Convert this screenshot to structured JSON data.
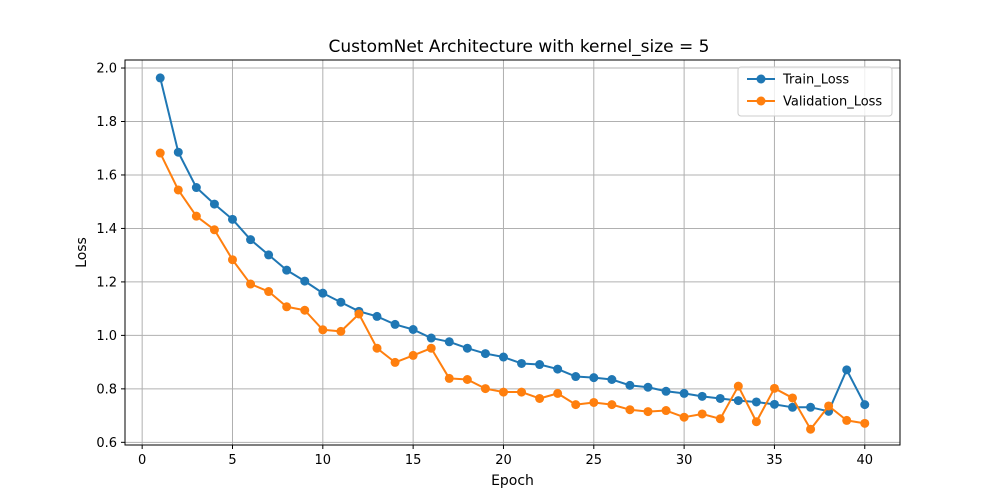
{
  "chart_data": {
    "type": "line",
    "title": "CustomNet Architecture with kernel_size = 5",
    "xlabel": "Epoch",
    "ylabel": "Loss",
    "xlim": [
      -0.95,
      41.95
    ],
    "ylim": [
      0.59,
      2.03
    ],
    "xticks": [
      0,
      5,
      10,
      15,
      20,
      25,
      30,
      35,
      40
    ],
    "xtick_labels": [
      "0",
      "5",
      "10",
      "15",
      "20",
      "25",
      "30",
      "35",
      "40"
    ],
    "yticks": [
      0.6,
      0.8,
      1.0,
      1.2,
      1.4,
      1.6,
      1.8,
      2.0
    ],
    "ytick_labels": [
      "0.6",
      "0.8",
      "1.0",
      "1.2",
      "1.4",
      "1.6",
      "1.8",
      "2.0"
    ],
    "grid": true,
    "legend_position": "top-right",
    "x": [
      1,
      2,
      3,
      4,
      5,
      6,
      7,
      8,
      9,
      10,
      11,
      12,
      13,
      14,
      15,
      16,
      17,
      18,
      19,
      20,
      21,
      22,
      23,
      24,
      25,
      26,
      27,
      28,
      29,
      30,
      31,
      32,
      33,
      34,
      35,
      36,
      37,
      38,
      39,
      40
    ],
    "series": [
      {
        "name": "Train_Loss",
        "color": "#1f77b4",
        "values": [
          1.963,
          1.685,
          1.553,
          1.491,
          1.434,
          1.358,
          1.301,
          1.244,
          1.203,
          1.158,
          1.124,
          1.09,
          1.071,
          1.041,
          1.022,
          0.99,
          0.976,
          0.952,
          0.932,
          0.919,
          0.895,
          0.891,
          0.874,
          0.846,
          0.842,
          0.835,
          0.813,
          0.806,
          0.791,
          0.783,
          0.772,
          0.764,
          0.756,
          0.751,
          0.742,
          0.731,
          0.731,
          0.716,
          0.871,
          0.741
        ]
      },
      {
        "name": "Validation_Loss",
        "color": "#ff7f0e",
        "values": [
          1.682,
          1.544,
          1.446,
          1.395,
          1.283,
          1.192,
          1.164,
          1.107,
          1.094,
          1.021,
          1.015,
          1.08,
          0.952,
          0.899,
          0.925,
          0.952,
          0.839,
          0.835,
          0.801,
          0.788,
          0.788,
          0.764,
          0.783,
          0.741,
          0.749,
          0.741,
          0.722,
          0.715,
          0.719,
          0.694,
          0.706,
          0.688,
          0.81,
          0.677,
          0.802,
          0.766,
          0.649,
          0.736,
          0.682,
          0.671
        ]
      }
    ]
  }
}
